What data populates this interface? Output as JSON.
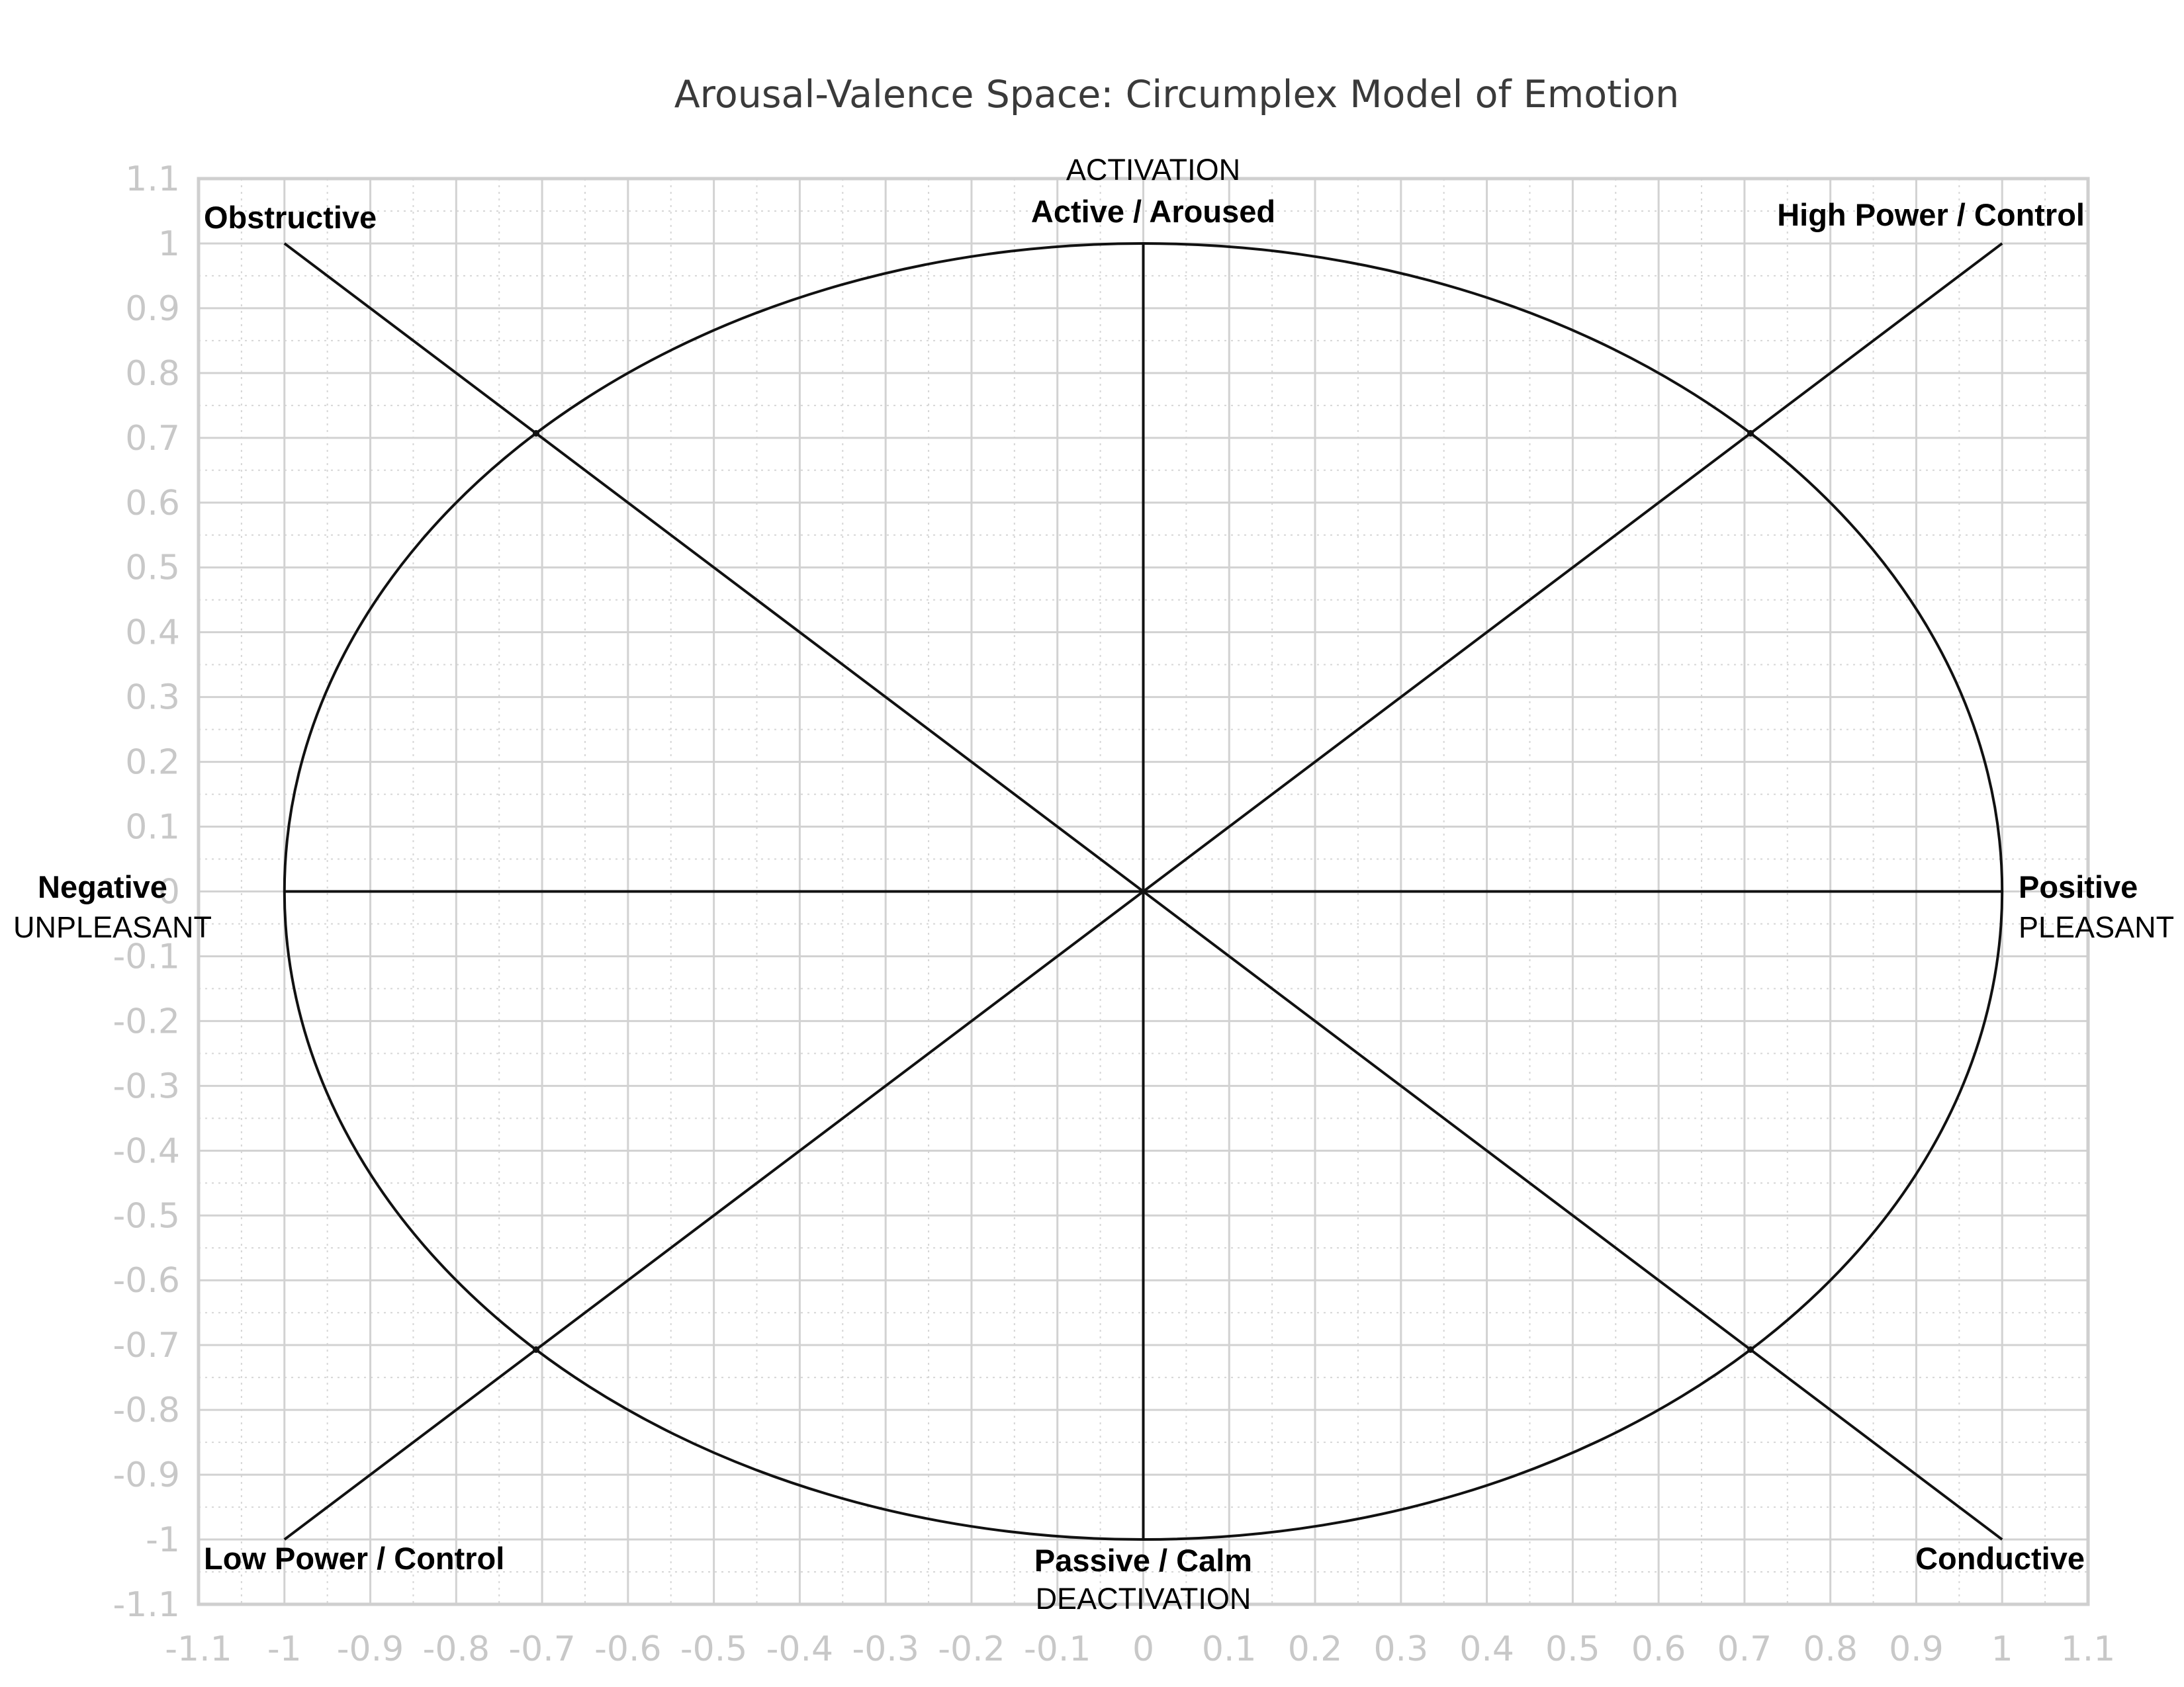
{
  "chart_data": {
    "type": "scatter",
    "title": "Arousal-Valence Space: Circumplex Model of Emotion",
    "xlim": [
      -1.1,
      1.1
    ],
    "ylim": [
      -1.1,
      1.1
    ],
    "x_ticks": [
      "-1.1",
      "-1",
      "-0.9",
      "-0.8",
      "-0.7",
      "-0.6",
      "-0.5",
      "-0.4",
      "-0.3",
      "-0.2",
      "-0.1",
      "0",
      "0.1",
      "0.2",
      "0.3",
      "0.4",
      "0.5",
      "0.6",
      "0.7",
      "0.8",
      "0.9",
      "1",
      "1.1"
    ],
    "y_ticks": [
      "1.1",
      "1",
      "0.9",
      "0.8",
      "0.7",
      "0.6",
      "0.5",
      "0.4",
      "0.3",
      "0.2",
      "0.1",
      "0",
      "-0.1",
      "-0.2",
      "-0.3",
      "-0.4",
      "-0.5",
      "-0.6",
      "-0.7",
      "-0.8",
      "-0.9",
      "-1",
      "-1.1"
    ],
    "grid": true,
    "circle": {
      "cx": 0,
      "cy": 0,
      "r": 1
    },
    "lines": [
      {
        "from": [
          -1,
          0
        ],
        "to": [
          1,
          0
        ]
      },
      {
        "from": [
          0,
          -1
        ],
        "to": [
          0,
          1
        ]
      },
      {
        "from": [
          -1,
          1
        ],
        "to": [
          1,
          -1
        ]
      },
      {
        "from": [
          -1,
          -1
        ],
        "to": [
          1,
          1
        ]
      }
    ],
    "intersections": [
      [
        0.707,
        0.707
      ],
      [
        -0.707,
        0.707
      ],
      [
        -0.707,
        -0.707
      ],
      [
        0.707,
        -0.707
      ]
    ],
    "annotations": {
      "top_small": "ACTIVATION",
      "top_bold": "Active / Aroused",
      "bottom_bold": "Passive / Calm",
      "bottom_small": "DEACTIVATION",
      "left_bold": "Negative",
      "left_small": "UNPLEASANT",
      "right_bold": "Positive",
      "right_small": "PLEASANT",
      "top_left": "Obstructive",
      "top_right": "High Power / Control",
      "bottom_left": "Low Power / Control",
      "bottom_right": "Conductive"
    }
  }
}
